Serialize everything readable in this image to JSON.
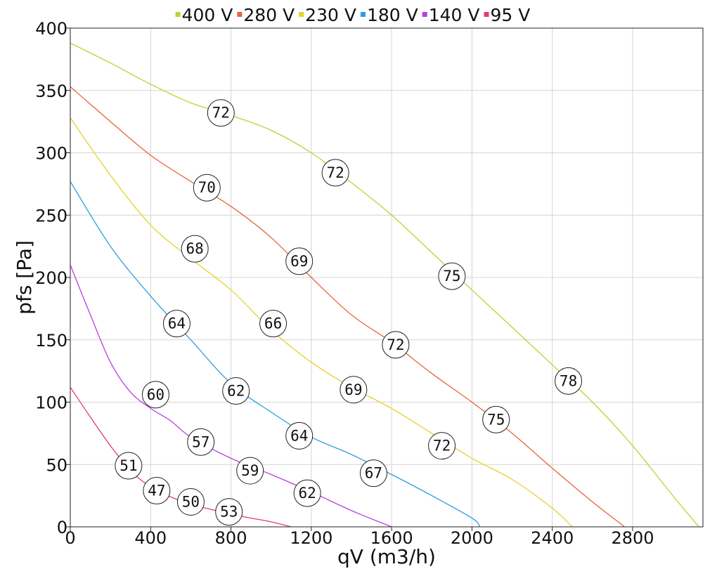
{
  "chart_data": {
    "type": "line",
    "xlabel": "qV (m3/h)",
    "ylabel": "pfs [Pa]",
    "xlim": [
      0,
      3150
    ],
    "ylim": [
      0,
      400
    ],
    "xticks": [
      0,
      400,
      800,
      1200,
      1600,
      2000,
      2400,
      2800
    ],
    "yticks": [
      0,
      50,
      100,
      150,
      200,
      250,
      300,
      350,
      400
    ],
    "grid": true,
    "legend_position": "top",
    "series": [
      {
        "name": "400 V",
        "color": "#b5d630",
        "points": [
          [
            0,
            388
          ],
          [
            200,
            372
          ],
          [
            400,
            355
          ],
          [
            600,
            340
          ],
          [
            800,
            330
          ],
          [
            1000,
            318
          ],
          [
            1200,
            300
          ],
          [
            1400,
            276
          ],
          [
            1600,
            250
          ],
          [
            1800,
            220
          ],
          [
            2000,
            190
          ],
          [
            2200,
            160
          ],
          [
            2400,
            130
          ],
          [
            2600,
            100
          ],
          [
            2800,
            65
          ],
          [
            3000,
            25
          ],
          [
            3130,
            0
          ]
        ],
        "labels": [
          {
            "x": 750,
            "y": 332,
            "text": "72"
          },
          {
            "x": 1320,
            "y": 284,
            "text": "72"
          },
          {
            "x": 1900,
            "y": 201,
            "text": "75"
          },
          {
            "x": 2480,
            "y": 117,
            "text": "78"
          }
        ]
      },
      {
        "name": "280 V",
        "color": "#e8643c",
        "points": [
          [
            0,
            353
          ],
          [
            200,
            325
          ],
          [
            400,
            298
          ],
          [
            600,
            277
          ],
          [
            800,
            257
          ],
          [
            1000,
            232
          ],
          [
            1200,
            200
          ],
          [
            1400,
            170
          ],
          [
            1600,
            148
          ],
          [
            1800,
            123
          ],
          [
            2000,
            100
          ],
          [
            2200,
            75
          ],
          [
            2400,
            47
          ],
          [
            2600,
            20
          ],
          [
            2760,
            0
          ]
        ],
        "labels": [
          {
            "x": 680,
            "y": 272,
            "text": "70"
          },
          {
            "x": 1140,
            "y": 213,
            "text": "69"
          },
          {
            "x": 1620,
            "y": 146,
            "text": "72"
          },
          {
            "x": 2120,
            "y": 86,
            "text": "75"
          }
        ]
      },
      {
        "name": "230 V",
        "color": "#e6d22e",
        "points": [
          [
            0,
            328
          ],
          [
            200,
            282
          ],
          [
            400,
            242
          ],
          [
            600,
            215
          ],
          [
            800,
            190
          ],
          [
            1000,
            158
          ],
          [
            1200,
            132
          ],
          [
            1400,
            112
          ],
          [
            1600,
            95
          ],
          [
            1800,
            75
          ],
          [
            2000,
            55
          ],
          [
            2200,
            38
          ],
          [
            2400,
            15
          ],
          [
            2500,
            0
          ]
        ],
        "labels": [
          {
            "x": 620,
            "y": 223,
            "text": "68"
          },
          {
            "x": 1010,
            "y": 163,
            "text": "66"
          },
          {
            "x": 1410,
            "y": 110,
            "text": "69"
          },
          {
            "x": 1850,
            "y": 65,
            "text": "72"
          }
        ]
      },
      {
        "name": "180 V",
        "color": "#2e9ee0",
        "points": [
          [
            0,
            277
          ],
          [
            200,
            225
          ],
          [
            400,
            185
          ],
          [
            600,
            150
          ],
          [
            800,
            115
          ],
          [
            1000,
            92
          ],
          [
            1200,
            72
          ],
          [
            1400,
            58
          ],
          [
            1600,
            42
          ],
          [
            1800,
            25
          ],
          [
            2000,
            7
          ],
          [
            2040,
            0
          ]
        ],
        "labels": [
          {
            "x": 530,
            "y": 163,
            "text": "64"
          },
          {
            "x": 825,
            "y": 109,
            "text": "62"
          },
          {
            "x": 1140,
            "y": 73,
            "text": "64"
          },
          {
            "x": 1510,
            "y": 43,
            "text": "67"
          }
        ]
      },
      {
        "name": "140 V",
        "color": "#b540e0",
        "points": [
          [
            0,
            210
          ],
          [
            100,
            170
          ],
          [
            200,
            132
          ],
          [
            300,
            108
          ],
          [
            400,
            95
          ],
          [
            500,
            85
          ],
          [
            600,
            72
          ],
          [
            800,
            55
          ],
          [
            1000,
            42
          ],
          [
            1200,
            28
          ],
          [
            1400,
            13
          ],
          [
            1600,
            0
          ]
        ],
        "labels": [
          {
            "x": 425,
            "y": 106,
            "text": "60"
          },
          {
            "x": 650,
            "y": 68,
            "text": "57"
          },
          {
            "x": 895,
            "y": 45,
            "text": "59"
          },
          {
            "x": 1180,
            "y": 27,
            "text": "62"
          }
        ]
      },
      {
        "name": "95 V",
        "color": "#e23c74",
        "points": [
          [
            0,
            112
          ],
          [
            100,
            88
          ],
          [
            200,
            65
          ],
          [
            300,
            45
          ],
          [
            400,
            32
          ],
          [
            500,
            24
          ],
          [
            600,
            18
          ],
          [
            700,
            14
          ],
          [
            800,
            10
          ],
          [
            900,
            7
          ],
          [
            1000,
            4
          ],
          [
            1100,
            0
          ]
        ],
        "labels": [
          {
            "x": 290,
            "y": 49,
            "text": "51"
          },
          {
            "x": 430,
            "y": 29,
            "text": "47"
          },
          {
            "x": 600,
            "y": 20,
            "text": "50"
          },
          {
            "x": 790,
            "y": 12,
            "text": "53"
          }
        ]
      }
    ]
  }
}
